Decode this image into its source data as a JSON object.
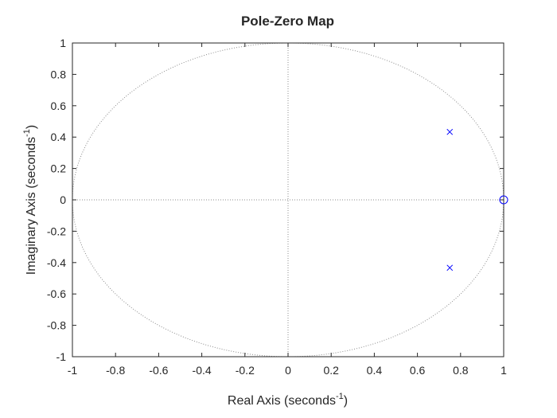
{
  "chart_data": {
    "type": "scatter",
    "title": "Pole-Zero Map",
    "xlabel": {
      "text": "Real Axis (seconds",
      "sup": "-1",
      "close": ")"
    },
    "ylabel": {
      "text": "Imaginary Axis (seconds",
      "sup": "-1",
      "close": ")"
    },
    "xlim": [
      -1,
      1
    ],
    "ylim": [
      -1,
      1
    ],
    "xticks": [
      "-1",
      "-0.8",
      "-0.6",
      "-0.4",
      "-0.2",
      "0",
      "0.2",
      "0.4",
      "0.6",
      "0.8",
      "1"
    ],
    "yticks": [
      "-1",
      "-0.8",
      "-0.6",
      "-0.4",
      "-0.2",
      "0",
      "0.2",
      "0.4",
      "0.6",
      "0.8",
      "1"
    ],
    "grid": false,
    "unit_circle": true,
    "series": [
      {
        "marker": "x",
        "color": "#0000ff",
        "points": [
          [
            0.75,
            0.433
          ],
          [
            0.75,
            -0.433
          ]
        ]
      },
      {
        "marker": "o",
        "color": "#0000ff",
        "points": [
          [
            1.0,
            0.0
          ]
        ]
      }
    ]
  }
}
